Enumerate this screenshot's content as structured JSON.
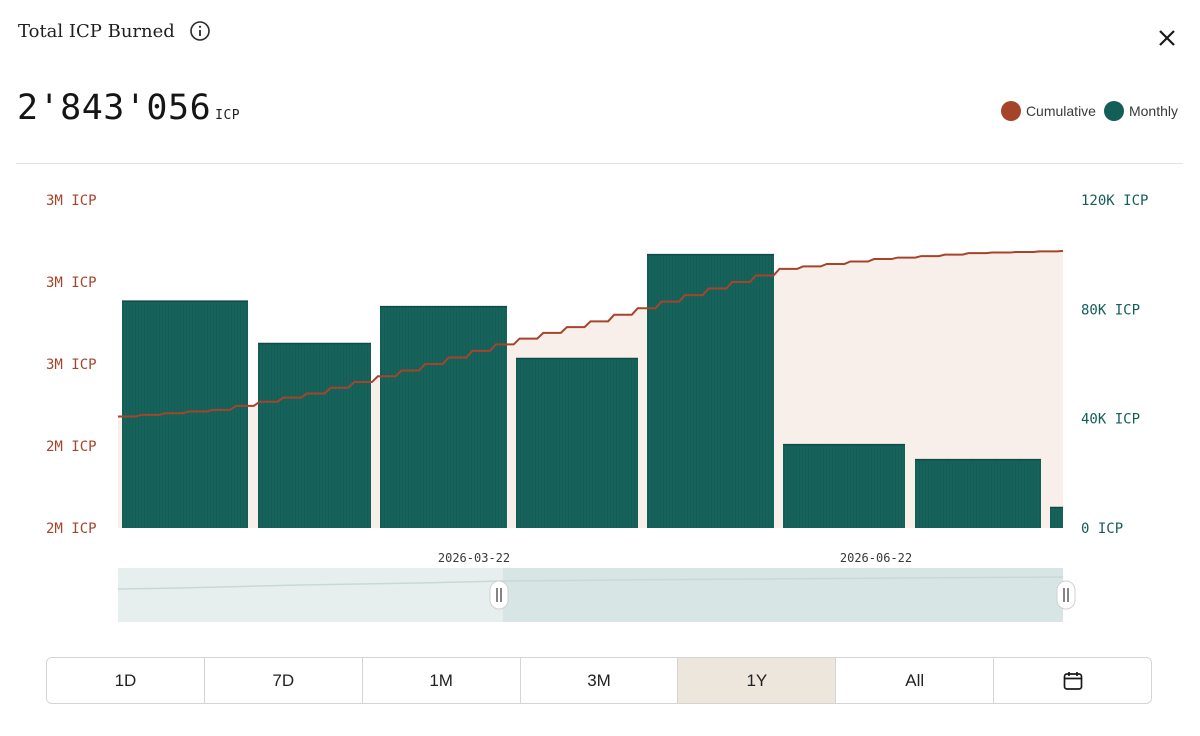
{
  "header": {
    "title": "Total ICP Burned",
    "total_value": "2'843'056",
    "total_unit": "ICP"
  },
  "legend": [
    {
      "label": "Cumulative",
      "color": "#a6442a"
    },
    {
      "label": "Monthly",
      "color": "#145e58"
    }
  ],
  "ranges": [
    {
      "label": "1D"
    },
    {
      "label": "7D"
    },
    {
      "label": "1M"
    },
    {
      "label": "3M"
    },
    {
      "label": "1Y",
      "active": true
    },
    {
      "label": "All"
    },
    {
      "icon": "calendar-icon"
    }
  ],
  "colors": {
    "cumulative": "#a6442a",
    "monthly": "#145e58",
    "area_fill": "#f8eeea",
    "navigator_fill": "#d7e6e4"
  },
  "chart_data": {
    "type": "bar",
    "title": "Total ICP Burned",
    "left_axis_ticks": [
      "3M ICP",
      "3M ICP",
      "3M ICP",
      "2M ICP",
      "2M ICP"
    ],
    "right_axis_ticks": [
      "120K ICP",
      "80K ICP",
      "40K ICP",
      "0 ICP"
    ],
    "right_ylim": [
      0,
      120000
    ],
    "x_tick_labels": [
      "2026-03-22",
      "2026-06-22"
    ],
    "series": [
      {
        "name": "Monthly",
        "type": "bar",
        "axis": "right",
        "values": [
          83000,
          67500,
          81000,
          62000,
          100000,
          30500,
          25000,
          7500
        ]
      },
      {
        "name": "Cumulative",
        "type": "line",
        "axis": "left",
        "values": [
          2.34,
          2.36,
          2.41,
          2.48,
          2.56,
          2.63,
          2.71,
          2.79,
          2.82,
          2.838,
          2.845
        ]
      }
    ],
    "left_ylim": [
      2.0,
      3.0
    ],
    "grid": false,
    "legend_position": "top-right"
  }
}
